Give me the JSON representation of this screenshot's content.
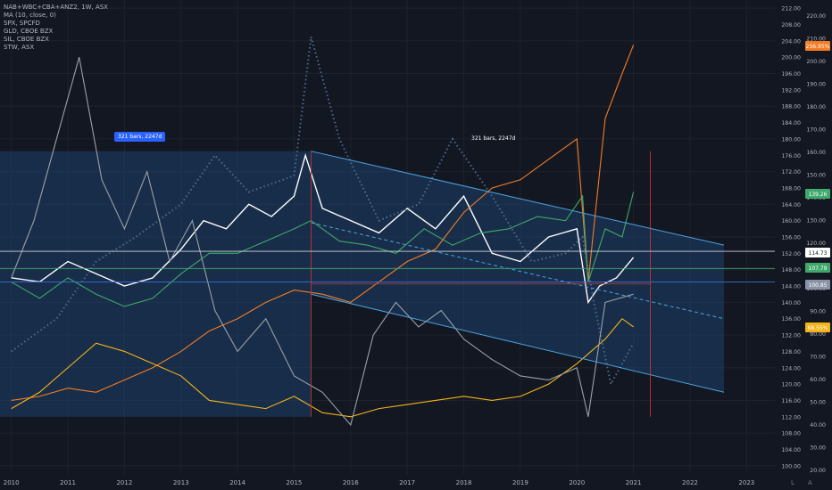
{
  "legend": [
    "NAB+WBC+CBA+ANZ2, 1W, ASX",
    "MA (10, close, 0)",
    "SPX, SPCFD",
    "GLD, CBOE BZX",
    "SIL, CBOE BZX",
    "STW, ASX"
  ],
  "measure_labels": [
    "321 bars, 2247d",
    "321 bars, 2247d"
  ],
  "axis_buttons": {
    "log": "L",
    "auto": "A"
  },
  "colors": {
    "background": "#131722",
    "grid": "#1e222d",
    "channel_fill": "#1e4a7a",
    "channel_line": "#4aa3df",
    "main": "#ffffff",
    "ma": "#4f6a8f",
    "spx": "#f57c23",
    "gld": "#f5b31a",
    "sil": "#9aa0aa",
    "stw": "#3fa86b",
    "red_line": "#d1392f"
  },
  "chart_data": {
    "type": "line",
    "x_ticks": [
      "2010",
      "2011",
      "2012",
      "2013",
      "2014",
      "2015",
      "2016",
      "2017",
      "2018",
      "2019",
      "2020",
      "2021",
      "2022",
      "2023"
    ],
    "y_left_ticks": [
      100,
      104,
      108,
      112,
      116,
      120,
      124,
      128,
      132,
      136,
      140,
      144,
      148,
      152,
      156,
      160,
      164,
      168,
      172,
      176,
      180,
      184,
      188,
      192,
      196,
      200,
      204,
      208,
      212
    ],
    "y_left_ticks_extra": [
      "100.00",
      "104.00",
      "108.00",
      "112.00",
      "116.00",
      "120.00",
      "124.00",
      "128.00",
      "132.00",
      "136.00",
      "140.00",
      "144.00",
      "148.00",
      "152.00",
      "156.00",
      "160.00",
      "164.00",
      "168.00",
      "172.00",
      "176.00",
      "180.00",
      "184.00",
      "188.00",
      "192.00",
      "196.00",
      "200.00",
      "204.00",
      "208.00",
      "212.00"
    ],
    "y_right_ticks": [
      "20.00",
      "30.00",
      "40.00",
      "50.00",
      "60.00",
      "70.00",
      "80.00",
      "90.00",
      "100.00",
      "110.00",
      "120.00",
      "130.00",
      "140.00",
      "150.00",
      "160.00",
      "170.00",
      "180.00",
      "190.00",
      "200.00",
      "210.00",
      "220.00"
    ],
    "price_badges": [
      {
        "label": "256.95%",
        "color": "#f57c23"
      },
      {
        "label": "139.26",
        "color": "#3fa86b"
      },
      {
        "label": "114.73",
        "color": "#ffffff"
      },
      {
        "label": "107.79",
        "color": "#3fa86b"
      },
      {
        "label": "100.85",
        "color": "#8a93a6"
      },
      {
        "label": "68.55%",
        "color": "#f5b31a"
      }
    ],
    "series": [
      {
        "name": "NAB+WBC+CBA+ANZ2",
        "x": [
          2010.0,
          2010.5,
          2011.0,
          2011.5,
          2012.0,
          2012.5,
          2013.0,
          2013.4,
          2013.8,
          2014.2,
          2014.6,
          2015.0,
          2015.2,
          2015.5,
          2016.0,
          2016.5,
          2017.0,
          2017.5,
          2018.0,
          2018.5,
          2019.0,
          2019.5,
          2020.0,
          2020.2,
          2020.4,
          2020.7,
          2021.0
        ],
        "y": [
          146,
          145,
          150,
          147,
          144,
          146,
          153,
          160,
          158,
          164,
          161,
          166,
          176,
          163,
          160,
          157,
          163,
          158,
          166,
          152,
          150,
          156,
          158,
          140,
          144,
          146,
          151
        ]
      },
      {
        "name": "MA (10, close, 0)",
        "x": [
          2010.0,
          2010.8,
          2011.5,
          2012.2,
          2013.0,
          2013.6,
          2014.2,
          2015.0,
          2015.3,
          2015.8,
          2016.5,
          2017.2,
          2017.8,
          2018.5,
          2019.2,
          2019.8,
          2020.1,
          2020.3,
          2020.6,
          2021.0
        ],
        "y": [
          128,
          136,
          150,
          156,
          164,
          176,
          167,
          171,
          205,
          180,
          160,
          164,
          180,
          166,
          150,
          152,
          156,
          140,
          120,
          130
        ]
      },
      {
        "name": "SPX",
        "x": [
          2010.0,
          2010.5,
          2011.0,
          2011.5,
          2012.0,
          2012.5,
          2013.0,
          2013.5,
          2014.0,
          2014.5,
          2015.0,
          2015.5,
          2016.0,
          2016.5,
          2017.0,
          2017.5,
          2018.0,
          2018.5,
          2019.0,
          2019.5,
          2020.0,
          2020.2,
          2020.5,
          2020.8,
          2021.0
        ],
        "y": [
          116,
          117,
          119,
          118,
          121,
          124,
          128,
          133,
          136,
          140,
          143,
          142,
          140,
          145,
          150,
          153,
          162,
          168,
          170,
          175,
          180,
          145,
          185,
          196,
          203
        ]
      },
      {
        "name": "GLD",
        "x": [
          2010.0,
          2010.5,
          2011.0,
          2011.5,
          2012.0,
          2012.5,
          2013.0,
          2013.5,
          2014.0,
          2014.5,
          2015.0,
          2015.5,
          2016.0,
          2016.5,
          2017.0,
          2017.5,
          2018.0,
          2018.5,
          2019.0,
          2019.5,
          2020.0,
          2020.5,
          2020.8,
          2021.0
        ],
        "y": [
          114,
          118,
          124,
          130,
          128,
          125,
          122,
          116,
          115,
          114,
          117,
          113,
          112,
          114,
          115,
          116,
          117,
          116,
          117,
          120,
          125,
          131,
          136,
          134
        ]
      },
      {
        "name": "SIL",
        "x": [
          2010.0,
          2010.4,
          2010.8,
          2011.2,
          2011.6,
          2012.0,
          2012.4,
          2012.8,
          2013.2,
          2013.6,
          2014.0,
          2014.5,
          2015.0,
          2015.5,
          2016.0,
          2016.4,
          2016.8,
          2017.2,
          2017.6,
          2018.0,
          2018.5,
          2019.0,
          2019.5,
          2020.0,
          2020.2,
          2020.5,
          2021.0
        ],
        "y": [
          146,
          160,
          180,
          200,
          170,
          158,
          172,
          150,
          160,
          138,
          128,
          136,
          122,
          118,
          110,
          132,
          140,
          134,
          138,
          131,
          126,
          122,
          121,
          124,
          112,
          140,
          142
        ]
      },
      {
        "name": "STW",
        "x": [
          2010.0,
          2010.5,
          2011.0,
          2011.5,
          2012.0,
          2012.5,
          2013.0,
          2013.5,
          2014.0,
          2014.5,
          2015.0,
          2015.3,
          2015.8,
          2016.3,
          2016.8,
          2017.3,
          2017.8,
          2018.3,
          2018.8,
          2019.3,
          2019.8,
          2020.1,
          2020.2,
          2020.5,
          2020.8,
          2021.0
        ],
        "y": [
          145,
          141,
          146,
          142,
          139,
          141,
          147,
          152,
          152,
          155,
          158,
          160,
          155,
          154,
          152,
          158,
          154,
          157,
          158,
          161,
          160,
          166,
          145,
          158,
          156,
          167
        ]
      }
    ]
  }
}
